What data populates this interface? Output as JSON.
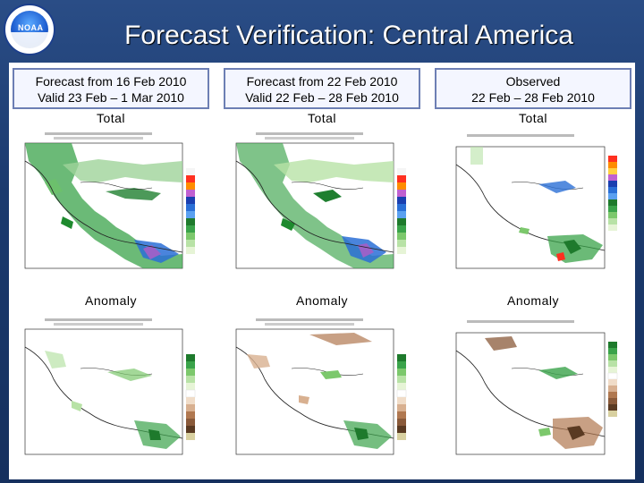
{
  "title": "Forecast Verification: Central America",
  "logo": {
    "text": "NOAA"
  },
  "columns": [
    {
      "header_line1": "Forecast from 16 Feb 2010",
      "header_line2": "Valid 23 Feb – 1 Mar 2010",
      "total_label": "Total",
      "anomaly_label": "Anomaly"
    },
    {
      "header_line1": "Forecast from 22 Feb 2010",
      "header_line2": "Valid 22 Feb – 28 Feb 2010",
      "total_label": "Total",
      "anomaly_label": "Anomaly"
    },
    {
      "header_line1": "Observed",
      "header_line2": "22 Feb – 28 Feb 2010",
      "total_label": "Total",
      "anomaly_label": "Anomaly"
    }
  ],
  "colors": {
    "background": "#1b3a6e",
    "title": "#ffffff",
    "header_border": "#6d7fb4",
    "precip_green": "#2e9e3a",
    "precip_blue": "#2a6fd6",
    "dry_brown": "#8a5a3a"
  }
}
